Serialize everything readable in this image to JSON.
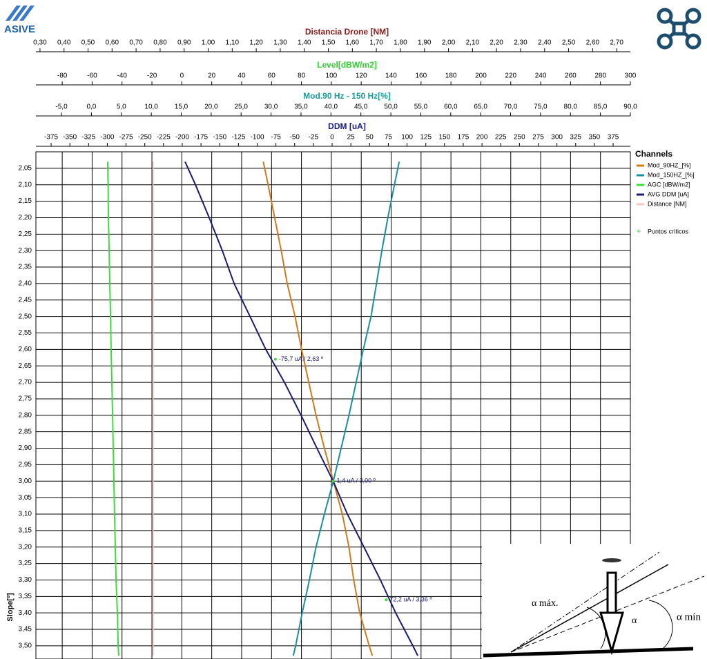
{
  "logo": {
    "text": "ASIVE"
  },
  "inset": {
    "labels": [
      "α máx.",
      "α",
      "α mín"
    ]
  },
  "chart_data": {
    "type": "line",
    "y_label": "Slope[º]",
    "ylim": [
      2.0,
      3.54
    ],
    "yticks": [
      {
        "value": 2.05,
        "label": "2,05"
      },
      {
        "value": 2.1,
        "label": "2,10"
      },
      {
        "value": 2.15,
        "label": "2,15"
      },
      {
        "value": 2.2,
        "label": "2,20"
      },
      {
        "value": 2.25,
        "label": "2,25"
      },
      {
        "value": 2.3,
        "label": "2,30"
      },
      {
        "value": 2.35,
        "label": "2,35"
      },
      {
        "value": 2.4,
        "label": "2,40"
      },
      {
        "value": 2.45,
        "label": "2,45"
      },
      {
        "value": 2.5,
        "label": "2,50"
      },
      {
        "value": 2.55,
        "label": "2,55"
      },
      {
        "value": 2.6,
        "label": "2,60"
      },
      {
        "value": 2.65,
        "label": "2,65"
      },
      {
        "value": 2.7,
        "label": "2,70"
      },
      {
        "value": 2.75,
        "label": "2,75"
      },
      {
        "value": 2.8,
        "label": "2,80"
      },
      {
        "value": 2.85,
        "label": "2,85"
      },
      {
        "value": 2.9,
        "label": "2,90"
      },
      {
        "value": 2.95,
        "label": "2,95"
      },
      {
        "value": 3.0,
        "label": "3,00"
      },
      {
        "value": 3.05,
        "label": "3,05"
      },
      {
        "value": 3.1,
        "label": "3,10"
      },
      {
        "value": 3.15,
        "label": "3,15"
      },
      {
        "value": 3.2,
        "label": "3,20"
      },
      {
        "value": 3.25,
        "label": "3,25"
      },
      {
        "value": 3.3,
        "label": "3,30"
      },
      {
        "value": 3.35,
        "label": "3,35"
      },
      {
        "value": 3.4,
        "label": "3,40"
      },
      {
        "value": 3.45,
        "label": "3,45"
      },
      {
        "value": 3.5,
        "label": "3,50"
      }
    ],
    "grid": true,
    "x_axes": [
      {
        "title": "Distancia Drone [NM]",
        "color": "#8b1a1a",
        "xlim": [
          0.283,
          2.757
        ],
        "xticks": [
          {
            "value": 0.3,
            "label": "0,30"
          },
          {
            "value": 0.4,
            "label": "0,40"
          },
          {
            "value": 0.5,
            "label": "0,50"
          },
          {
            "value": 0.6,
            "label": "0,60"
          },
          {
            "value": 0.7,
            "label": "0,70"
          },
          {
            "value": 0.8,
            "label": "0,80"
          },
          {
            "value": 0.9,
            "label": "0,90"
          },
          {
            "value": 1.0,
            "label": "1,00"
          },
          {
            "value": 1.1,
            "label": "1,10"
          },
          {
            "value": 1.2,
            "label": "1,20"
          },
          {
            "value": 1.3,
            "label": "1,30"
          },
          {
            "value": 1.4,
            "label": "1,40"
          },
          {
            "value": 1.5,
            "label": "1,50"
          },
          {
            "value": 1.6,
            "label": "1,60"
          },
          {
            "value": 1.7,
            "label": "1,70"
          },
          {
            "value": 1.8,
            "label": "1,80"
          },
          {
            "value": 1.9,
            "label": "1,90"
          },
          {
            "value": 2.0,
            "label": "2,00"
          },
          {
            "value": 2.1,
            "label": "2,10"
          },
          {
            "value": 2.2,
            "label": "2,20"
          },
          {
            "value": 2.3,
            "label": "2,30"
          },
          {
            "value": 2.4,
            "label": "2,40"
          },
          {
            "value": 2.5,
            "label": "2,50"
          },
          {
            "value": 2.6,
            "label": "2,60"
          },
          {
            "value": 2.7,
            "label": "2,70"
          }
        ]
      },
      {
        "title": "Level[dBW/m2]",
        "color": "#33cc33",
        "xlim": [
          -97.6,
          300
        ],
        "xticks": [
          -80,
          -60,
          -40,
          -20,
          0,
          20,
          40,
          60,
          80,
          100,
          120,
          140,
          160,
          180,
          200,
          220,
          240,
          260,
          280,
          300
        ]
      },
      {
        "title": "Mod.90 Hz - 150 Hz[%]",
        "color": "#1a9a9a",
        "xlim": [
          -9.27,
          90
        ],
        "xticks": [
          {
            "value": -5,
            "label": "-5,0"
          },
          {
            "value": 0,
            "label": "0,0"
          },
          {
            "value": 5,
            "label": "5,0"
          },
          {
            "value": 10,
            "label": "10,0"
          },
          {
            "value": 15,
            "label": "15,0"
          },
          {
            "value": 20,
            "label": "20,0"
          },
          {
            "value": 25,
            "label": "25,0"
          },
          {
            "value": 30,
            "label": "30,0"
          },
          {
            "value": 35,
            "label": "35,0"
          },
          {
            "value": 40,
            "label": "40,0"
          },
          {
            "value": 45,
            "label": "45,0"
          },
          {
            "value": 50,
            "label": "50,0"
          },
          {
            "value": 55,
            "label": "55,0"
          },
          {
            "value": 60,
            "label": "60,0"
          },
          {
            "value": 65,
            "label": "65,0"
          },
          {
            "value": 70,
            "label": "70,0"
          },
          {
            "value": 75,
            "label": "75,0"
          },
          {
            "value": 80,
            "label": "80,0"
          },
          {
            "value": 85,
            "label": "85,0"
          },
          {
            "value": 90,
            "label": "90,0"
          }
        ]
      },
      {
        "title": "DDM [uA]",
        "color": "#1a1a8b",
        "xlim": [
          -395.3,
          398
        ],
        "xticks": [
          -375,
          -350,
          -325,
          -300,
          -275,
          -250,
          -225,
          -200,
          -175,
          -150,
          -125,
          -100,
          -75,
          -50,
          -25,
          0,
          25,
          50,
          75,
          100,
          125,
          150,
          175,
          200,
          225,
          250,
          275,
          300,
          325,
          350,
          375
        ]
      }
    ],
    "y": [
      2.03,
      2.1,
      2.2,
      2.3,
      2.4,
      2.5,
      2.6,
      2.7,
      2.8,
      2.9,
      3.0,
      3.1,
      3.2,
      3.3,
      3.4,
      3.5,
      3.53
    ],
    "legend_title": "Channels",
    "series": [
      {
        "name": "Mod_90HZ_[%]",
        "color": "#d07a1c",
        "axis": 2,
        "values": [
          28.7,
          29.5,
          30.6,
          31.7,
          32.7,
          34.0,
          35.1,
          36.3,
          37.5,
          38.9,
          40.4,
          41.9,
          43.0,
          43.8,
          44.8,
          46.4,
          46.9
        ]
      },
      {
        "name": "Mod_150HZ_[%]",
        "color": "#1a8fa0",
        "axis": 2,
        "values": [
          51.4,
          50.6,
          49.5,
          48.5,
          47.6,
          46.7,
          45.4,
          44.2,
          43.0,
          41.7,
          40.4,
          38.9,
          37.5,
          36.4,
          35.2,
          34.1,
          33.7
        ]
      },
      {
        "name": "AGC [dBW/m2]",
        "color": "#3ddc3d",
        "axis": 1,
        "values": [
          -49.6,
          -49.3,
          -49.1,
          -48.6,
          -48.2,
          -47.7,
          -47.3,
          -46.8,
          -46.3,
          -45.9,
          -45.4,
          -45.0,
          -44.5,
          -44.0,
          -43.1,
          -42.6,
          -42.2
        ]
      },
      {
        "name": "AVG DDM [uA]",
        "color": "#1a1a6e",
        "axis": 3,
        "values": [
          -196.3,
          -182.4,
          -164.0,
          -146.5,
          -130.8,
          -109.6,
          -88.5,
          -63.6,
          -41.4,
          -20.3,
          1.4,
          20.3,
          42.4,
          64.5,
          84.8,
          107.8,
          114.3
        ]
      },
      {
        "name": "Distance [NM]",
        "color": "#f4c6c6",
        "axis": 0,
        "values": [
          0.77,
          0.77,
          0.77,
          0.77,
          0.77,
          0.77,
          0.77,
          0.77,
          0.77,
          0.77,
          0.77,
          0.77,
          0.77,
          0.77,
          0.77,
          0.77,
          0.77
        ]
      }
    ],
    "critical_points": {
      "name": "Puntos críticos",
      "color": "#3ddc3d",
      "points": [
        {
          "text": "-75,7 uA / 2,63 º",
          "x": -75.7,
          "y": 2.63
        },
        {
          "text": "1,4 uA / 3,00 º",
          "x": 1.4,
          "y": 3.0
        },
        {
          "text": "72,2 uA / 3,36 º",
          "x": 72.2,
          "y": 3.36
        }
      ]
    }
  }
}
